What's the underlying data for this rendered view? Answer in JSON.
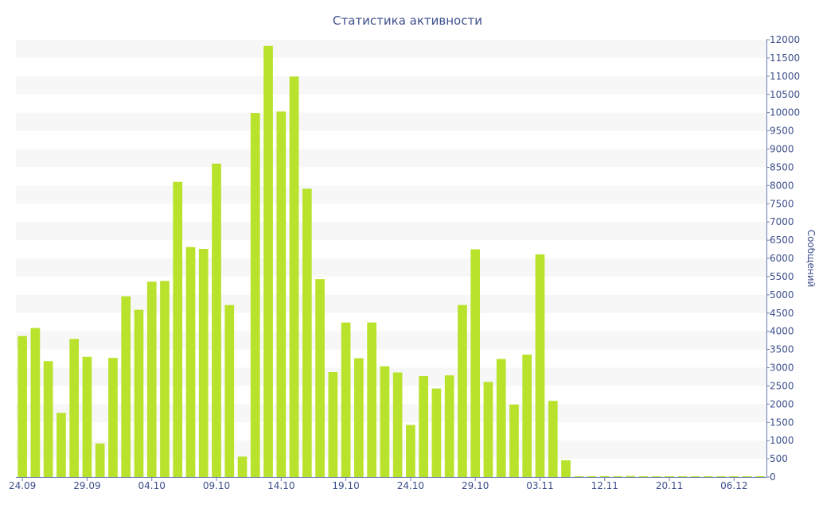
{
  "chart_data": {
    "type": "bar",
    "title": "Статистика активности",
    "xlabel": "",
    "ylabel": "Сообщений",
    "ylim": [
      0,
      12000
    ],
    "ytick_step": 500,
    "grid": "alternating horizontal bands",
    "legend": "none",
    "colors": {
      "bar": "#b9e22c",
      "band": "#f7f7f7",
      "text": "#3d4f8c",
      "axis": "#6a7bb4"
    },
    "x_tick_labels": [
      {
        "index": 0,
        "label": "24.09"
      },
      {
        "index": 5,
        "label": "29.09"
      },
      {
        "index": 10,
        "label": "04.10"
      },
      {
        "index": 15,
        "label": "09.10"
      },
      {
        "index": 20,
        "label": "14.10"
      },
      {
        "index": 25,
        "label": "19.10"
      },
      {
        "index": 30,
        "label": "24.10"
      },
      {
        "index": 35,
        "label": "29.10"
      },
      {
        "index": 40,
        "label": "03.11"
      },
      {
        "index": 45,
        "label": "12.11"
      },
      {
        "index": 50,
        "label": "20.11"
      },
      {
        "index": 55,
        "label": "06.12"
      }
    ],
    "values": [
      3870,
      4090,
      3180,
      1760,
      3790,
      3300,
      920,
      3270,
      4960,
      4590,
      5360,
      5380,
      8100,
      6310,
      6260,
      8600,
      4720,
      560,
      9990,
      11830,
      10030,
      10990,
      7910,
      5430,
      2880,
      4240,
      3260,
      4240,
      3040,
      2870,
      1430,
      2770,
      2430,
      2790,
      4720,
      6250,
      2610,
      3240,
      1990,
      3360,
      6110,
      2090,
      460,
      20,
      15,
      25,
      20,
      30,
      20,
      15,
      20,
      15,
      20,
      15,
      15,
      20,
      15,
      15
    ]
  }
}
